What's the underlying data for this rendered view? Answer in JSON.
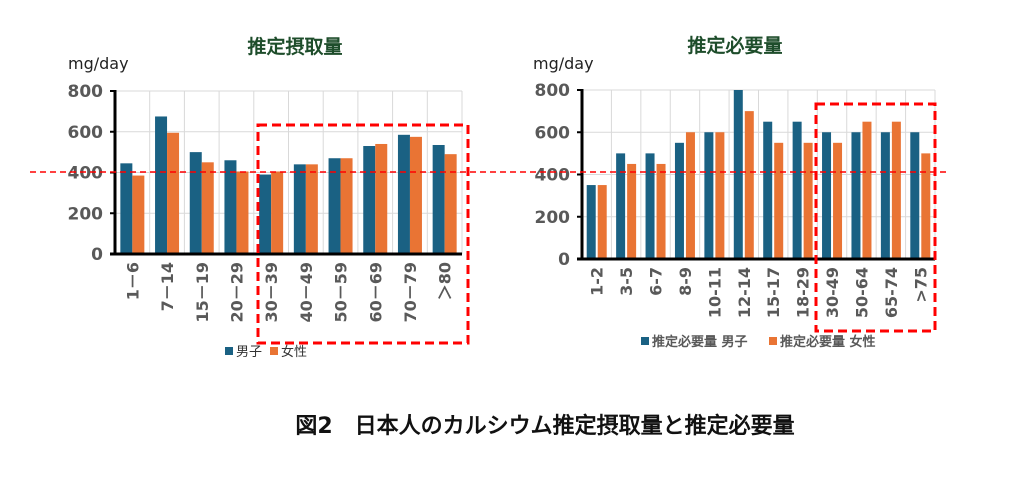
{
  "caption": "図2　日本人のカルシウム推定摂取量と推定必要量",
  "colors": {
    "male": "#1a6183",
    "female": "#e97434",
    "highlight": "#ff0000",
    "title": "#1e4d2b"
  },
  "chart_data": [
    {
      "type": "bar",
      "title": "推定摂取量",
      "ylabel": "mg/day",
      "xlabel": "",
      "ylim": [
        0,
        800
      ],
      "yticks": [
        "0",
        "200",
        "400",
        "600",
        "800"
      ],
      "grid": true,
      "legend_placement": "bottom",
      "categories": [
        "1－6",
        "7－14",
        "15－19",
        "20－29",
        "30－39",
        "40－49",
        "50－59",
        "60－69",
        "70－79",
        "＞80"
      ],
      "series": [
        {
          "name": "男子",
          "values": [
            445,
            675,
            500,
            460,
            390,
            440,
            470,
            530,
            585,
            535
          ]
        },
        {
          "name": "女性",
          "values": [
            385,
            595,
            450,
            405,
            405,
            440,
            470,
            540,
            575,
            490
          ]
        }
      ],
      "highlight_from_category": 4,
      "reference_line": 400
    },
    {
      "type": "bar",
      "title": "推定必要量",
      "ylabel": "mg/day",
      "xlabel": "",
      "ylim": [
        0,
        800
      ],
      "yticks": [
        "0",
        "200",
        "400",
        "600",
        "800"
      ],
      "grid": true,
      "legend_placement": "bottom",
      "categories": [
        "1-2",
        "3-5",
        "6-7",
        "8-9",
        "10-11",
        "12-14",
        "15-17",
        "18-29",
        "30-49",
        "50-64",
        "65-74",
        ">75"
      ],
      "series": [
        {
          "name": "推定必要量 男子",
          "values": [
            350,
            500,
            500,
            550,
            600,
            800,
            650,
            650,
            600,
            600,
            600,
            600
          ]
        },
        {
          "name": "推定必要量 女性",
          "values": [
            350,
            450,
            450,
            600,
            600,
            700,
            550,
            550,
            550,
            650,
            650,
            500
          ]
        }
      ],
      "highlight_from_category": 8,
      "reference_line": 400
    }
  ]
}
